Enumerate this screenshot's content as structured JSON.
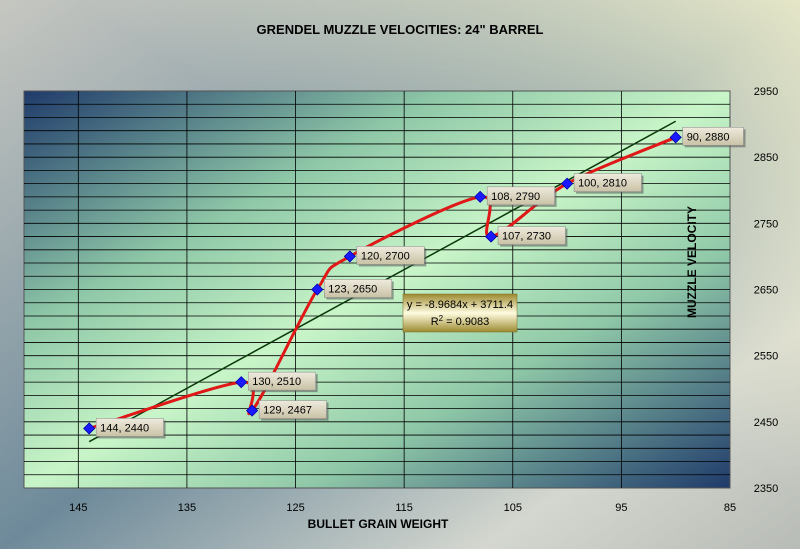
{
  "chart_data": {
    "type": "line",
    "title": "GRENDEL MUZZLE VELOCITIES: 24\" BARREL",
    "xlabel": "BULLET GRAIN WEIGHT",
    "ylabel": "MUZZLE VELOCITY",
    "x_reversed": true,
    "xlim": [
      85,
      150
    ],
    "ylim": [
      2350,
      2950
    ],
    "x_ticks": [
      145,
      135,
      125,
      115,
      105,
      95,
      85
    ],
    "y_ticks": [
      2950,
      2850,
      2750,
      2650,
      2550,
      2450,
      2350
    ],
    "grid": true,
    "legend": "none",
    "series": [
      {
        "color": "#e01818",
        "marker_color": "#1a1aff",
        "points": [
          {
            "x": 144,
            "y": 2440,
            "label": "144, 2440"
          },
          {
            "x": 130,
            "y": 2510,
            "label": "130, 2510"
          },
          {
            "x": 129,
            "y": 2467,
            "label": "129, 2467"
          },
          {
            "x": 123,
            "y": 2650,
            "label": "123, 2650"
          },
          {
            "x": 120,
            "y": 2700,
            "label": "120, 2700"
          },
          {
            "x": 108,
            "y": 2790,
            "label": "108, 2790"
          },
          {
            "x": 107,
            "y": 2730,
            "label": "107, 2730"
          },
          {
            "x": 100,
            "y": 2810,
            "label": "100, 2810"
          },
          {
            "x": 90,
            "y": 2880,
            "label": "90, 2880"
          }
        ]
      }
    ],
    "trendline": {
      "color": "#0a3a0a",
      "slope": -8.9684,
      "intercept": 3711.4,
      "x_range": [
        144,
        90
      ],
      "equation": "y = -8.9684x + 3711.4",
      "r_squared_label": "R",
      "r_squared_sup": "2",
      "r_squared_value": " = 0.9083"
    },
    "colors": {
      "plot_grid": "#000000",
      "label_box": "#ddd8c4"
    }
  }
}
